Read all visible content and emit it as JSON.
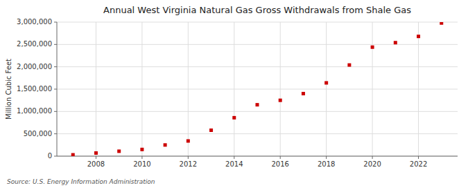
{
  "chart_data": {
    "type": "scatter",
    "title": "Annual West Virginia Natural Gas Gross Withdrawals from Shale Gas",
    "ylabel": "Million Cubic Feet",
    "source": "Source: U.S. Energy Information Administration",
    "x": [
      2007,
      2008,
      2009,
      2010,
      2011,
      2012,
      2013,
      2014,
      2015,
      2016,
      2017,
      2018,
      2019,
      2020,
      2021,
      2022,
      2023
    ],
    "values": [
      30000,
      70000,
      110000,
      150000,
      250000,
      340000,
      580000,
      860000,
      1150000,
      1250000,
      1400000,
      1640000,
      2040000,
      2440000,
      2540000,
      2680000,
      2980000
    ],
    "xlim": [
      2006.3,
      2023.7
    ],
    "xticks": [
      2008,
      2010,
      2012,
      2014,
      2016,
      2018,
      2020,
      2022
    ],
    "ylim": [
      0,
      3000000
    ],
    "yticks": [
      0,
      {
        "value": 500000,
        "label": "500,000"
      },
      {
        "value": 1000000,
        "label": "1,000,000"
      },
      {
        "value": 1500000,
        "label": "1,500,000"
      },
      {
        "value": 2000000,
        "label": "2,000,000"
      },
      {
        "value": 2500000,
        "label": "2,500,000"
      },
      {
        "value": 3000000,
        "label": "3,000,000"
      }
    ],
    "color": "#cc0000",
    "marker": "square",
    "grid": true
  }
}
